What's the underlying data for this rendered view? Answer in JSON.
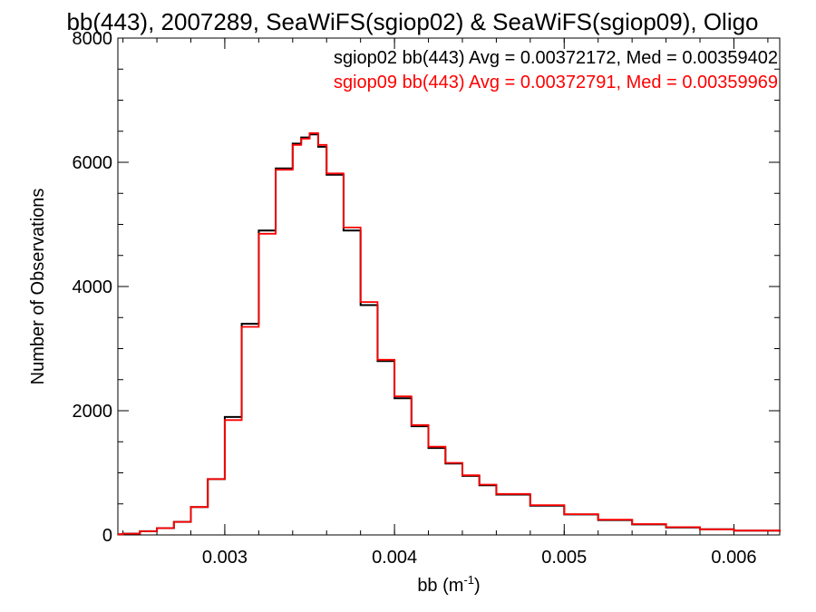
{
  "chart_data": {
    "type": "line",
    "title": "bb(443), 2007289, SeaWiFS(sgiop02) & SeaWiFS(sgiop09), Oligo",
    "xlabel": "bb (m",
    "xlabel_sup": "-1",
    "xlabel_close": ")",
    "ylabel": "Number of Observations",
    "xlim": [
      0.00237,
      0.00627
    ],
    "ylim": [
      0,
      8000
    ],
    "xticks": [
      0.003,
      0.004,
      0.005,
      0.006
    ],
    "xtick_labels": [
      "0.003",
      "0.004",
      "0.005",
      "0.006"
    ],
    "yticks": [
      0,
      2000,
      4000,
      6000,
      8000
    ],
    "ytick_labels": [
      "0",
      "2000",
      "4000",
      "6000",
      "8000"
    ],
    "grid": false,
    "legend_placement": "top-right",
    "x": [
      0.00237,
      0.0024,
      0.0025,
      0.0026,
      0.0027,
      0.0028,
      0.0029,
      0.003,
      0.0031,
      0.0032,
      0.0033,
      0.0034,
      0.00345,
      0.0035,
      0.00355,
      0.0036,
      0.0037,
      0.0038,
      0.0039,
      0.004,
      0.0041,
      0.0042,
      0.0043,
      0.0044,
      0.0045,
      0.0046,
      0.0048,
      0.005,
      0.0052,
      0.0054,
      0.0056,
      0.0058,
      0.006,
      0.00627
    ],
    "series": [
      {
        "name": "sgiop02",
        "legend_text": "sgiop02 bb(443) Avg = 0.00372172, Med = 0.00359402",
        "color": "#000000",
        "values": [
          10,
          20,
          60,
          110,
          210,
          450,
          900,
          1900,
          3400,
          4900,
          5900,
          6300,
          6400,
          6450,
          6250,
          5800,
          4900,
          3700,
          2800,
          2200,
          1750,
          1400,
          1150,
          950,
          800,
          650,
          470,
          330,
          240,
          170,
          120,
          90,
          70,
          50
        ]
      },
      {
        "name": "sgiop09",
        "legend_text": "sgiop09 bb(443) Avg = 0.00372791, Med = 0.00359969",
        "color": "#ff0000",
        "values": [
          10,
          20,
          60,
          110,
          210,
          450,
          900,
          1850,
          3350,
          4850,
          5880,
          6280,
          6380,
          6470,
          6280,
          5820,
          4950,
          3750,
          2820,
          2230,
          1770,
          1420,
          1160,
          960,
          810,
          660,
          480,
          335,
          245,
          175,
          125,
          90,
          70,
          50
        ]
      }
    ]
  }
}
